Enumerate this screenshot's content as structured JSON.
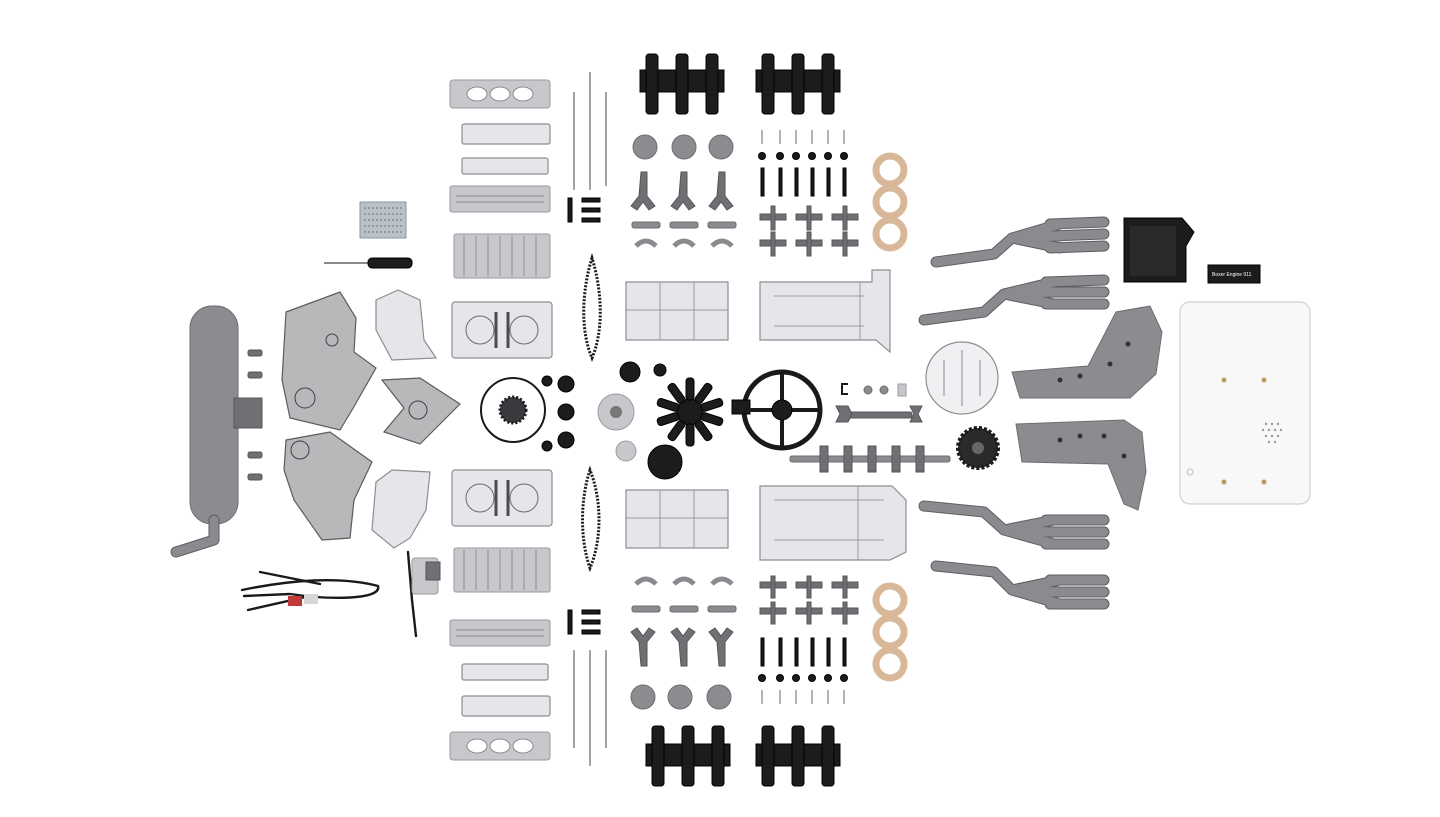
{
  "image": {
    "description_label": "",
    "colors": {
      "background": "#ffffff",
      "gray_plastic": "#8c8c90",
      "black_plastic": "#1c1c1e",
      "gasket": "#d9b89a",
      "clear_plastic": "#e6e6ea"
    }
  },
  "base_plate": {
    "label_text": "Boxer Engine 911"
  }
}
